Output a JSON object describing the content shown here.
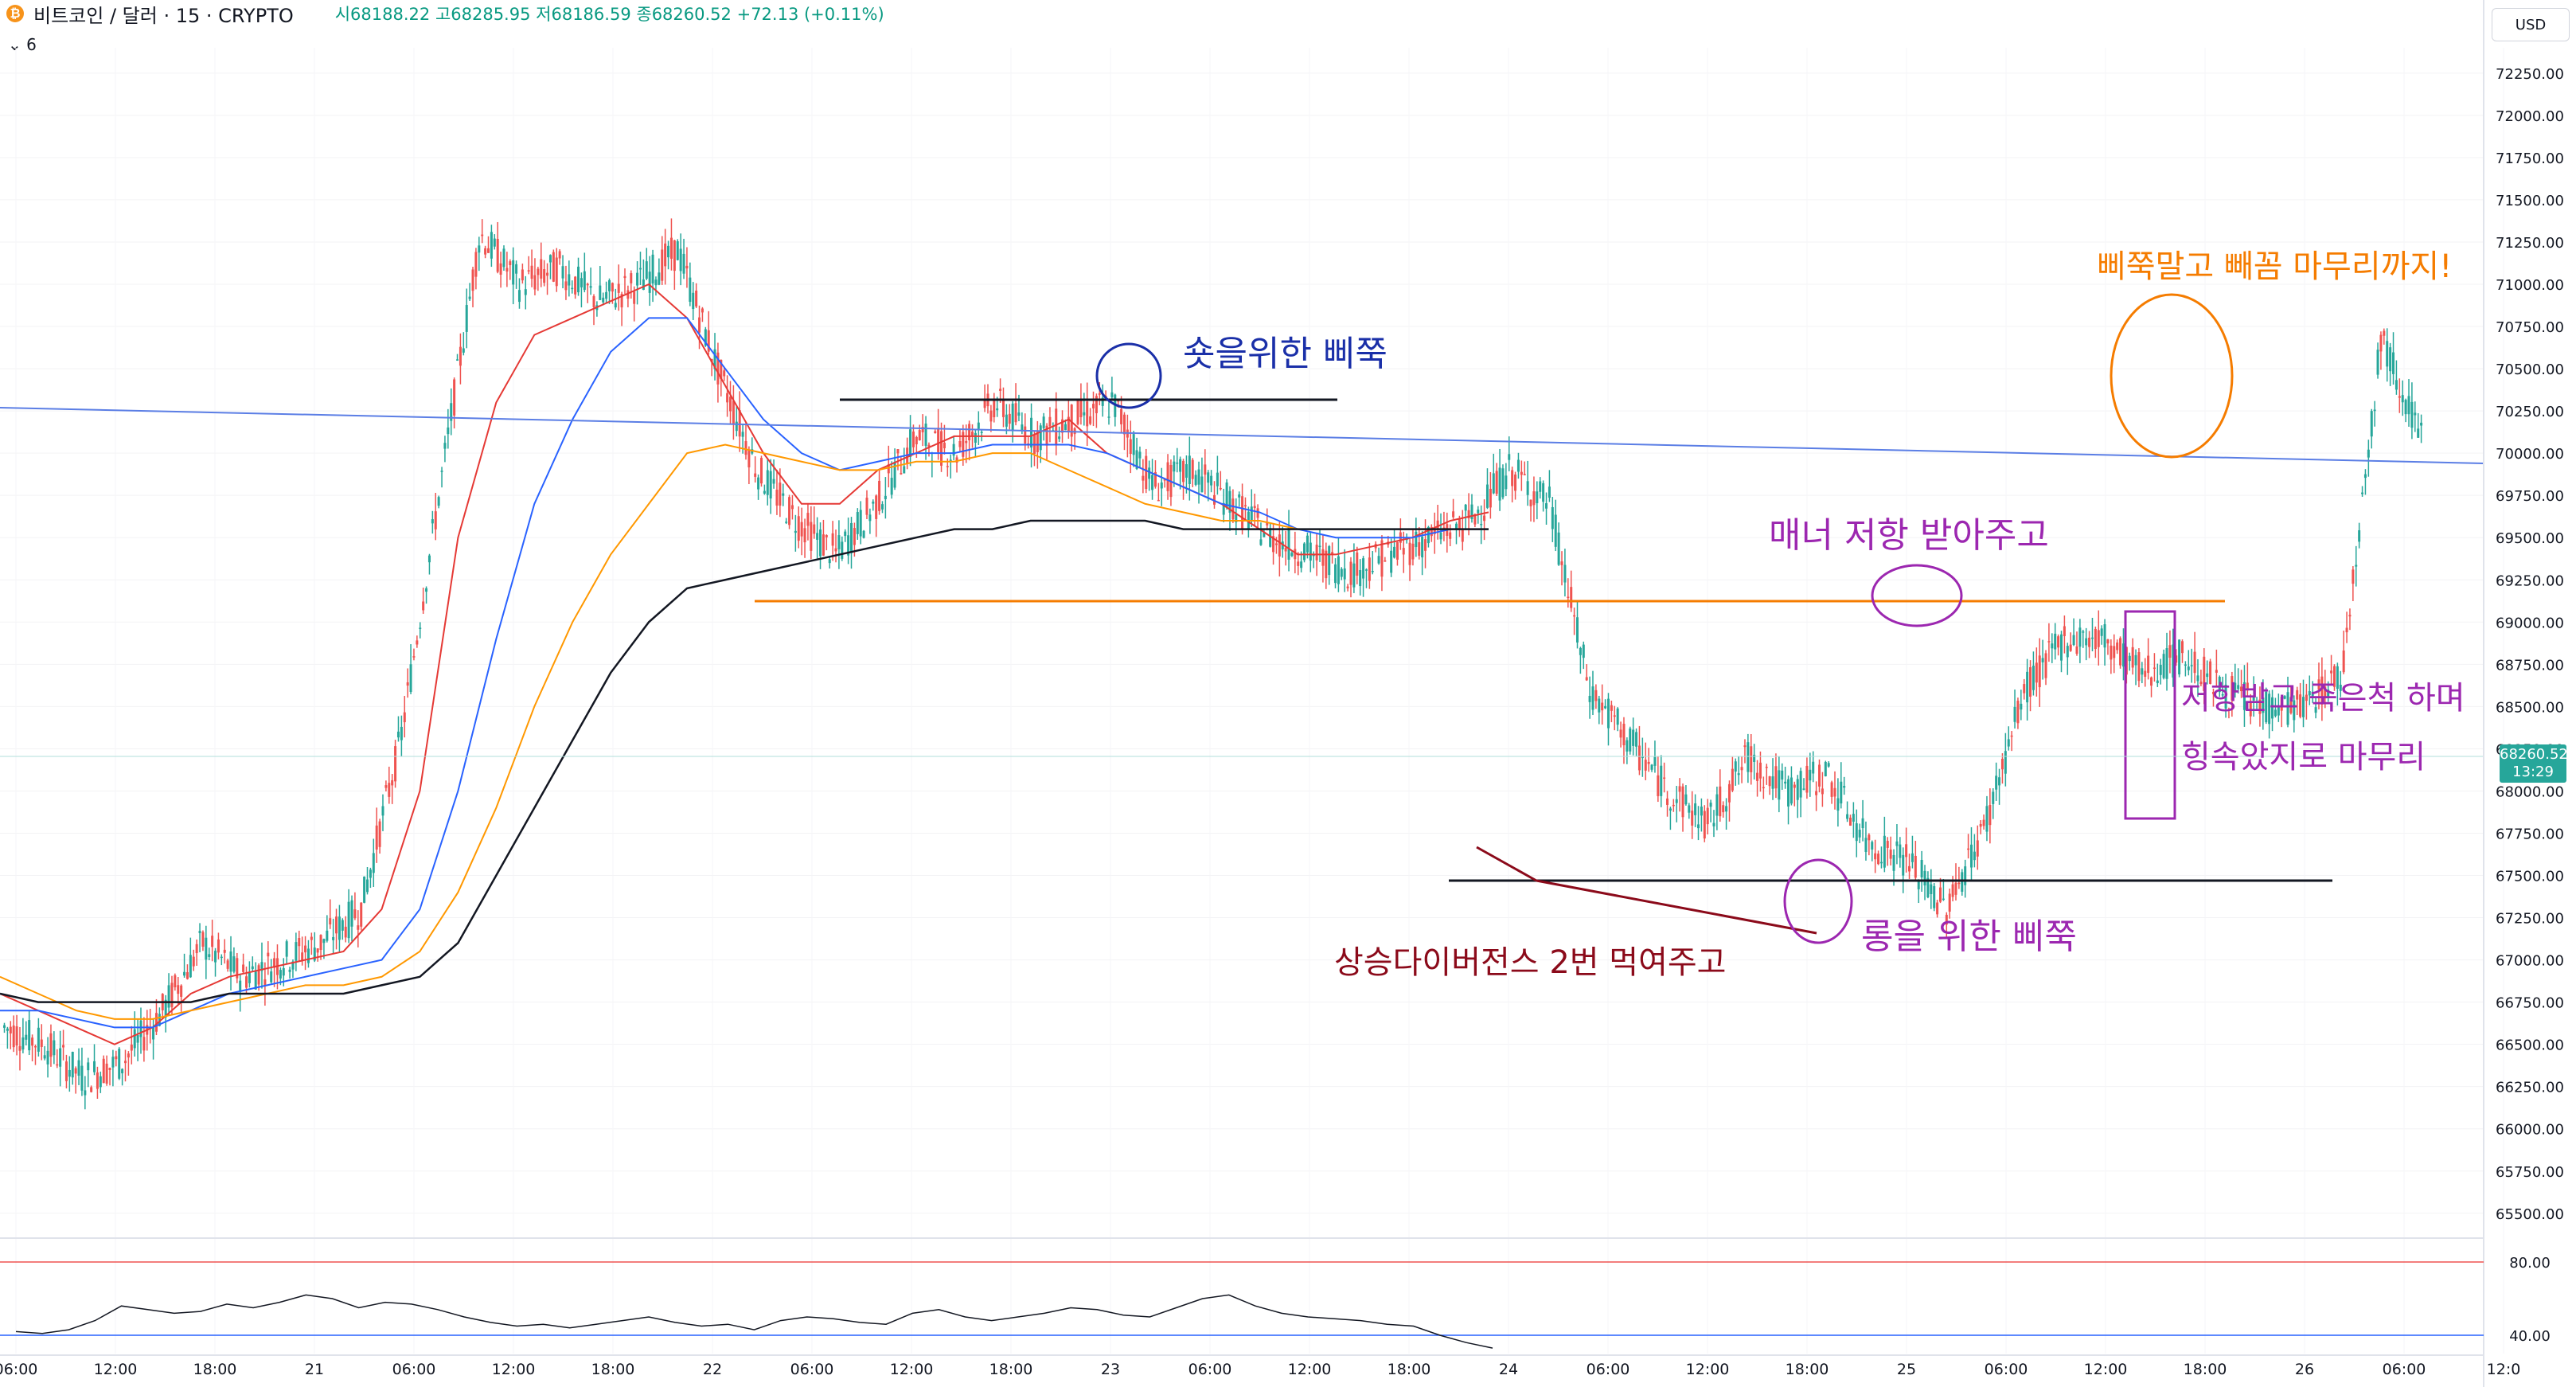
{
  "header": {
    "symbol": "비트코인 / 달러 · 15 · CRYPTO",
    "open": "시68188.22",
    "high": "고68285.95",
    "low": "저68186.59",
    "close": "종68260.52",
    "change": "+72.13 (+0.11%)",
    "indicator_toggle": "6",
    "currency": "USD"
  },
  "price_badge": {
    "price": "68260.52",
    "countdown": "13:29"
  },
  "colors": {
    "up": "#26a69a",
    "down": "#ef5350",
    "ema_red": "#e53935",
    "ema_blue": "#2962ff",
    "ema_orange": "#ff9800",
    "ema_black": "#131722",
    "annotation_blue": "#1a2fa8",
    "annotation_purple": "#9c27b0",
    "annotation_orange": "#f57c00",
    "annotation_maroon": "#8b0a1a"
  },
  "annotations": {
    "short_spike": "숏을위한 삐쭉",
    "manner_resistance": "매너 저항 받아주고",
    "long_spike": "롱을 위한 삐쭉",
    "divergence": "상승다이버전스 2번 먹여주고",
    "final_spike": "삐쭉말고 빼꼼 마무리까지!",
    "fake_death_1": "저항받고 죽은척 하며",
    "fake_death_2": "힝속았지로 마무리"
  },
  "chart_data": [
    {
      "type": "line",
      "title": "",
      "xlabel": "",
      "ylabel": "",
      "ylim": [
        65400,
        72400
      ],
      "y_ticks": [
        "72250.00",
        "72000.00",
        "71750.00",
        "71500.00",
        "71250.00",
        "71000.00",
        "70750.00",
        "70500.00",
        "70250.00",
        "70000.00",
        "69750.00",
        "69500.00",
        "69250.00",
        "69000.00",
        "68750.00",
        "68500.00",
        "68250.00",
        "68000.00",
        "67750.00",
        "67500.00",
        "67250.00",
        "67000.00",
        "66750.00",
        "66500.00",
        "66250.00",
        "66000.00",
        "65750.00",
        "65500.00"
      ],
      "x_ticks": [
        "06:00",
        "12:00",
        "18:00",
        "21",
        "06:00",
        "12:00",
        "18:00",
        "22",
        "06:00",
        "12:00",
        "18:00",
        "23",
        "06:00",
        "12:00",
        "18:00",
        "24",
        "06:00",
        "12:00",
        "18:00",
        "25",
        "06:00",
        "12:00",
        "18:00",
        "26",
        "06:00",
        "12:0"
      ],
      "series": [
        {
          "values": [
            66600,
            66500,
            66300,
            66400,
            66700,
            67100,
            66900,
            67000,
            67100,
            67300,
            68300,
            69800,
            71300,
            71000,
            71100,
            70900,
            71000,
            71200,
            70500,
            69900,
            69600,
            69400,
            69700,
            70100,
            70000,
            70300,
            70100,
            70200,
            70300,
            69800,
            69900,
            69700,
            69500,
            69400,
            69300,
            69400,
            69500,
            69600,
            69900,
            69700,
            68600,
            68300,
            68000,
            67800,
            68200,
            68000,
            68100,
            67700,
            67600,
            67300,
            67800,
            68600,
            68900,
            68900,
            68700,
            68800,
            68600,
            68500,
            68500,
            68700,
            70700,
            70100
          ]
        },
        {
          "values": [
            66800,
            66700,
            66600,
            66500,
            66600,
            66800,
            66900,
            66950,
            67000,
            67050,
            67300,
            68000,
            69500,
            70300,
            70700,
            70800,
            70900,
            71000,
            70800,
            70400,
            70000,
            69700,
            69700,
            69900,
            70000,
            70100,
            70100,
            70100,
            70200,
            70000,
            69900,
            69800,
            69700,
            69550,
            69400,
            69400,
            69450,
            69500,
            69600,
            69650
          ]
        },
        {
          "values": [
            66700,
            66700,
            66650,
            66600,
            66600,
            66700,
            66800,
            66850,
            66900,
            66950,
            67000,
            67300,
            68000,
            68900,
            69700,
            70200,
            70600,
            70800,
            70800,
            70500,
            70200,
            70000,
            69900,
            69950,
            70000,
            70000,
            70050,
            70050,
            70050,
            70000,
            69900,
            69800,
            69700,
            69650,
            69550,
            69500,
            69500,
            69500,
            69550,
            69550
          ]
        },
        {
          "values": [
            66900,
            66800,
            66700,
            66650,
            66650,
            66700,
            66750,
            66800,
            66850,
            66850,
            66900,
            67050,
            67400,
            67900,
            68500,
            69000,
            69400,
            69700,
            70000,
            70050,
            70000,
            69950,
            69900,
            69900,
            69950,
            69950,
            70000,
            70000,
            69900,
            69800,
            69700,
            69650,
            69600,
            69600,
            69550,
            69550,
            69550,
            69550,
            69550,
            69550
          ]
        },
        {
          "values": [
            66800,
            66750,
            66750,
            66750,
            66750,
            66750,
            66800,
            66800,
            66800,
            66800,
            66850,
            66900,
            67100,
            67500,
            67900,
            68300,
            68700,
            69000,
            69200,
            69250,
            69300,
            69350,
            69400,
            69450,
            69500,
            69550,
            69550,
            69600,
            69600,
            69600,
            69600,
            69550,
            69550,
            69550,
            69550,
            69550,
            69550,
            69550,
            69550,
            69550
          ]
        }
      ]
    },
    {
      "type": "line",
      "title": "",
      "ylim": [
        30,
        90
      ],
      "y_ticks": [
        "80.00",
        "40.00"
      ],
      "series": [
        {
          "values": [
            42,
            41,
            43,
            48,
            56,
            54,
            52,
            53,
            57,
            55,
            58,
            62,
            60,
            55,
            58,
            57,
            54,
            50,
            47,
            45,
            46,
            44,
            46,
            48,
            50,
            47,
            45,
            46,
            43,
            48,
            50,
            49,
            47,
            46,
            52,
            54,
            50,
            48,
            50,
            52,
            55,
            54,
            51,
            50,
            55,
            60,
            62,
            56,
            52,
            50,
            49,
            48,
            46,
            45,
            40,
            36,
            33
          ]
        }
      ]
    }
  ]
}
